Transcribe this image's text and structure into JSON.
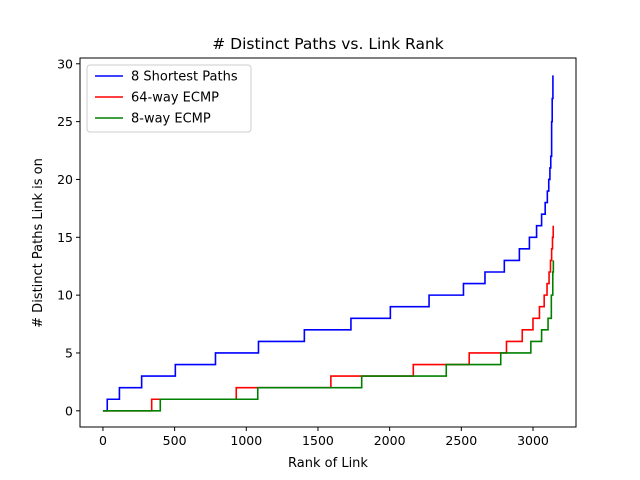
{
  "chart_data": {
    "type": "line",
    "title": "# Distinct Paths vs. Link Rank",
    "xlabel": "Rank of Link",
    "ylabel": "# Distinct Paths Link is on",
    "xlim": [
      -160,
      3300
    ],
    "ylim": [
      -1.4,
      30.5
    ],
    "xticks": [
      0,
      500,
      1000,
      1500,
      2000,
      2500,
      3000
    ],
    "yticks": [
      0,
      5,
      10,
      15,
      20,
      25,
      30
    ],
    "grid": false,
    "legend_position": "top-left",
    "step": true,
    "series": [
      {
        "name": "8 Shortest Paths",
        "color": "#0000ff",
        "x": [
          0,
          30,
          115,
          270,
          505,
          785,
          1085,
          1405,
          1730,
          2005,
          2275,
          2515,
          2665,
          2800,
          2905,
          2975,
          3025,
          3060,
          3085,
          3100,
          3110,
          3118,
          3124,
          3130,
          3134,
          3139
        ],
        "y": [
          0,
          1,
          2,
          3,
          4,
          5,
          6,
          7,
          8,
          9,
          10,
          11,
          12,
          13,
          14,
          15,
          16,
          17,
          18,
          19,
          20,
          21,
          22,
          25,
          27,
          29
        ]
      },
      {
        "name": "64-way ECMP",
        "color": "#ff0000",
        "x": [
          0,
          340,
          930,
          1590,
          2165,
          2555,
          2815,
          2925,
          3000,
          3045,
          3078,
          3098,
          3112,
          3122,
          3130,
          3136,
          3141
        ],
        "y": [
          0,
          1,
          2,
          3,
          4,
          5,
          6,
          7,
          8,
          9,
          10,
          11,
          12,
          13,
          14,
          15,
          16
        ]
      },
      {
        "name": "8-way ECMP",
        "color": "#008000",
        "x": [
          0,
          400,
          1080,
          1805,
          2395,
          2775,
          2985,
          3060,
          3105,
          3128,
          3138,
          3142
        ],
        "y": [
          0,
          1,
          2,
          3,
          4,
          5,
          6,
          7,
          8,
          10,
          12,
          13
        ]
      }
    ]
  }
}
